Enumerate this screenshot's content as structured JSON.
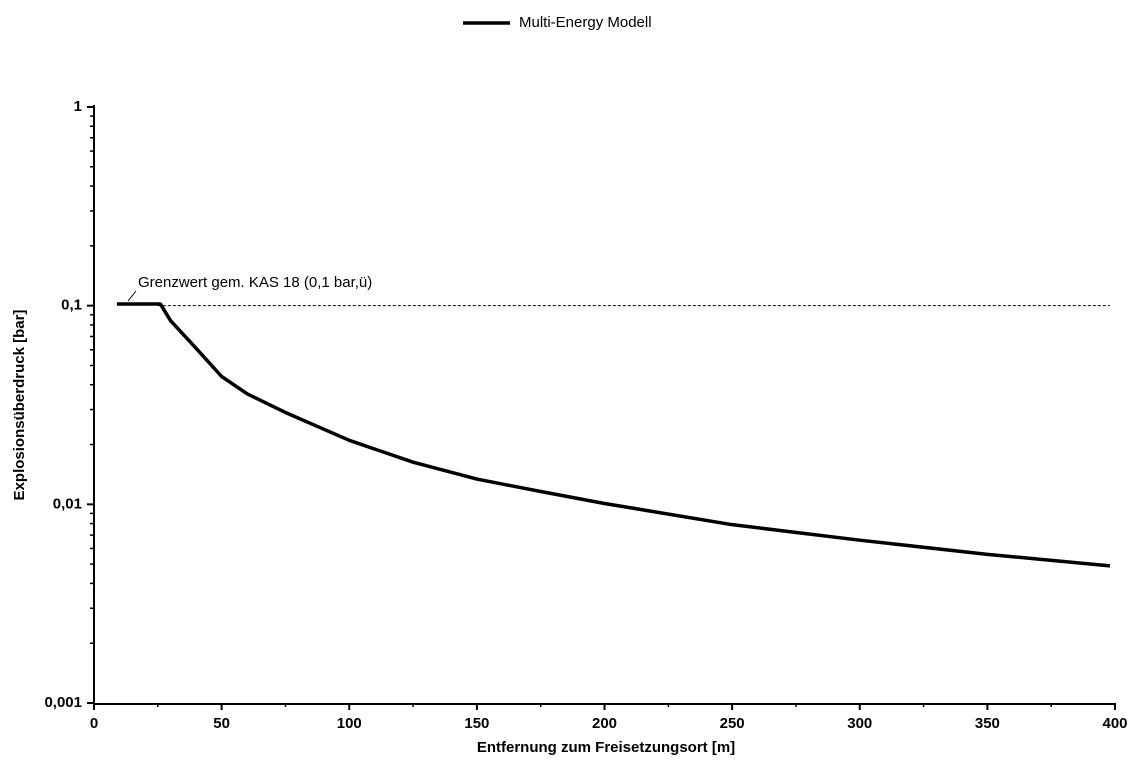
{
  "chart_data": {
    "type": "line",
    "x_label": "Entfernung zum Freisetzungsort [m]",
    "y_label": "Explosionsüberdruck [bar]",
    "x": [
      9,
      26,
      30,
      40,
      50,
      60,
      75,
      100,
      125,
      150,
      175,
      200,
      250,
      300,
      350,
      398
    ],
    "series": [
      {
        "name": "Multi-Energy Modell",
        "color": "#000000",
        "values": [
          0.102,
          0.102,
          0.084,
          0.061,
          0.044,
          0.036,
          0.029,
          0.021,
          0.0163,
          0.0134,
          0.0116,
          0.0101,
          0.0079,
          0.0066,
          0.0056,
          0.0049
        ]
      }
    ],
    "xlim": [
      0,
      400
    ],
    "xticks": [
      0,
      50,
      100,
      150,
      200,
      250,
      300,
      350,
      400
    ],
    "ylim": [
      0.001,
      1
    ],
    "yscale": "log",
    "yticks": [
      {
        "value": 0.001,
        "label": "0,001"
      },
      {
        "value": 0.01,
        "label": "0,01"
      },
      {
        "value": 0.1,
        "label": "0,1"
      },
      1
    ],
    "threshold": {
      "value": 0.1,
      "label": "Grenzwert gem. KAS 18 (0,1 bar,ü)"
    },
    "legend": "top"
  }
}
